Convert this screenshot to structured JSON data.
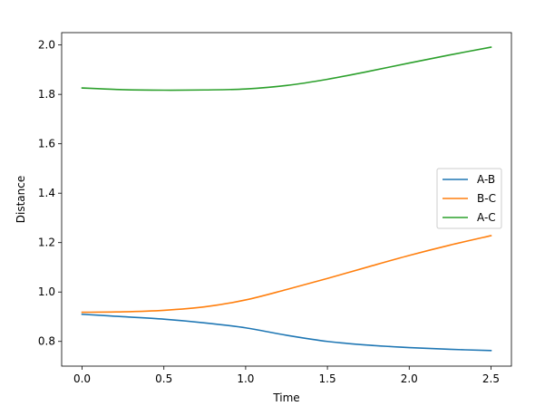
{
  "chart_data": {
    "type": "line",
    "xlabel": "Time",
    "ylabel": "Distance",
    "xlim": [
      -0.125,
      2.625
    ],
    "ylim": [
      0.7,
      2.05
    ],
    "xticks": [
      0.0,
      0.5,
      1.0,
      1.5,
      2.0,
      2.5
    ],
    "xtick_labels": [
      "0.0",
      "0.5",
      "1.0",
      "1.5",
      "2.0",
      "2.5"
    ],
    "yticks": [
      0.8,
      1.0,
      1.2,
      1.4,
      1.6,
      1.8,
      2.0
    ],
    "ytick_labels": [
      "0.8",
      "1.0",
      "1.2",
      "1.4",
      "1.6",
      "1.8",
      "2.0"
    ],
    "grid": false,
    "legend_position": "center-right",
    "x": [
      0.0,
      0.25,
      0.5,
      0.75,
      1.0,
      1.25,
      1.5,
      1.75,
      2.0,
      2.25,
      2.5
    ],
    "series": [
      {
        "name": "A-B",
        "color": "#1f77b4",
        "values": [
          0.91,
          0.9,
          0.89,
          0.875,
          0.855,
          0.825,
          0.8,
          0.785,
          0.775,
          0.768,
          0.763
        ]
      },
      {
        "name": " B-C",
        "color": "#ff7f0e",
        "values": [
          0.918,
          0.92,
          0.926,
          0.94,
          0.968,
          1.01,
          1.055,
          1.102,
          1.148,
          1.19,
          1.228
        ]
      },
      {
        "name": "A-C",
        "color": "#2ca02c",
        "values": [
          1.826,
          1.819,
          1.817,
          1.818,
          1.822,
          1.836,
          1.861,
          1.893,
          1.927,
          1.96,
          1.991
        ]
      }
    ]
  }
}
